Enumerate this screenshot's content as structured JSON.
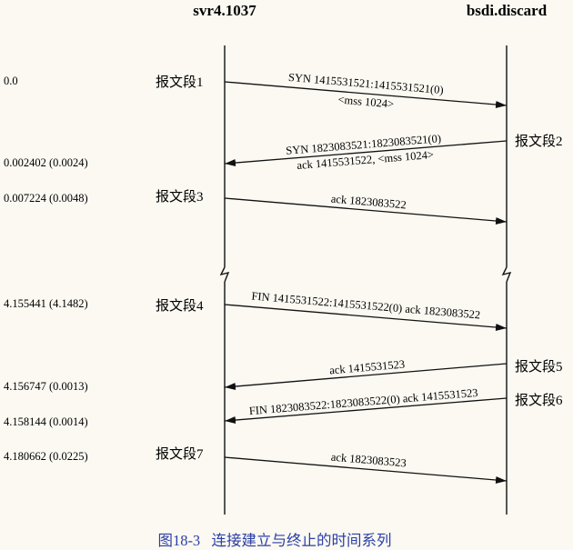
{
  "hosts": {
    "left": "svr4.1037",
    "right": "bsdi.discard"
  },
  "caption": "图18-3   连接建立与终止的时间系列",
  "colors": {
    "background": "#fbf9f2",
    "ink": "#111111",
    "caption": "#2b3fa8"
  },
  "timestamps": {
    "t1": "0.0",
    "t2": "0.002402 (0.0024)",
    "t3": "0.007224 (0.0048)",
    "t4": "4.155441 (4.1482)",
    "t5": "4.156747 (0.0013)",
    "t6": "4.158144 (0.0014)",
    "t7": "4.180662 (0.0225)"
  },
  "segments": {
    "s1": {
      "label": "报文段1",
      "line1": "SYN  1415531521:1415531521(0)",
      "line2": "<mss 1024>"
    },
    "s2": {
      "label": "报文段2",
      "line1": "SYN  1823083521:1823083521(0)",
      "line2": "ack 1415531522, <mss 1024>"
    },
    "s3": {
      "label": "报文段3",
      "line1": "ack 1823083522"
    },
    "s4": {
      "label": "报文段4",
      "line1": "FIN  1415531522:1415531522(0) ack 1823083522"
    },
    "s5": {
      "label": "报文段5",
      "line1": "ack 1415531523"
    },
    "s6": {
      "label": "报文段6",
      "line1": "FIN  1823083522:1823083522(0) ack 1415531523"
    },
    "s7": {
      "label": "报文段7",
      "line1": "ack 1823083523"
    }
  }
}
